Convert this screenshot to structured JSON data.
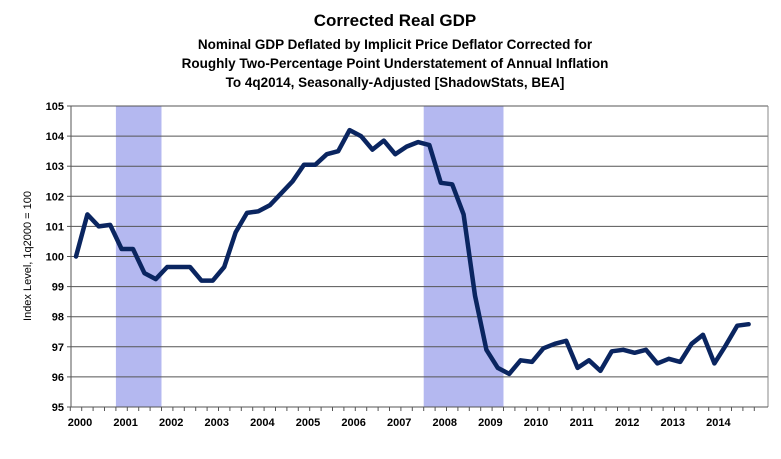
{
  "chart_data": {
    "type": "line",
    "title": "Corrected Real GDP",
    "subtitle_lines": [
      "Nominal GDP Deflated by Implicit Price Deflator Corrected for",
      "Roughly Two-Percentage Point Understatement of Annual Inflation",
      "To 4q2014, Seasonally-Adjusted [ShadowStats, BEA]"
    ],
    "xlabel": "",
    "ylabel": "Index Level, 1q2000 = 100",
    "ylim": [
      95,
      105
    ],
    "yticks": [
      "95",
      "96",
      "97",
      "98",
      "99",
      "100",
      "101",
      "102",
      "103",
      "104",
      "105"
    ],
    "xticks": [
      "2000",
      "2001",
      "2002",
      "2003",
      "2004",
      "2005",
      "2006",
      "2007",
      "2008",
      "2009",
      "2010",
      "2011",
      "2012",
      "2013",
      "2014"
    ],
    "grid": true,
    "frequency": "quarterly",
    "recessions": [
      {
        "start_index": 3.5,
        "end_index": 7.5
      },
      {
        "start_index": 30.5,
        "end_index": 37.5
      }
    ],
    "series": [
      {
        "name": "Corrected Real GDP",
        "color": "#0a2560",
        "values": [
          100.0,
          101.4,
          101.0,
          101.05,
          100.25,
          100.25,
          99.45,
          99.25,
          99.65,
          99.65,
          99.65,
          99.2,
          99.2,
          99.65,
          100.8,
          101.45,
          101.5,
          101.7,
          102.1,
          102.5,
          103.05,
          103.05,
          103.4,
          103.5,
          104.2,
          104.0,
          103.55,
          103.85,
          103.4,
          103.65,
          103.8,
          103.7,
          102.45,
          102.4,
          101.4,
          98.7,
          96.9,
          96.3,
          96.1,
          96.55,
          96.5,
          96.95,
          97.1,
          97.2,
          96.3,
          96.55,
          96.2,
          96.85,
          96.9,
          96.8,
          96.9,
          96.45,
          96.6,
          96.5,
          97.1,
          97.4,
          96.45,
          97.05,
          97.7,
          97.75
        ]
      }
    ],
    "recession_color": "#b4b8f0"
  }
}
